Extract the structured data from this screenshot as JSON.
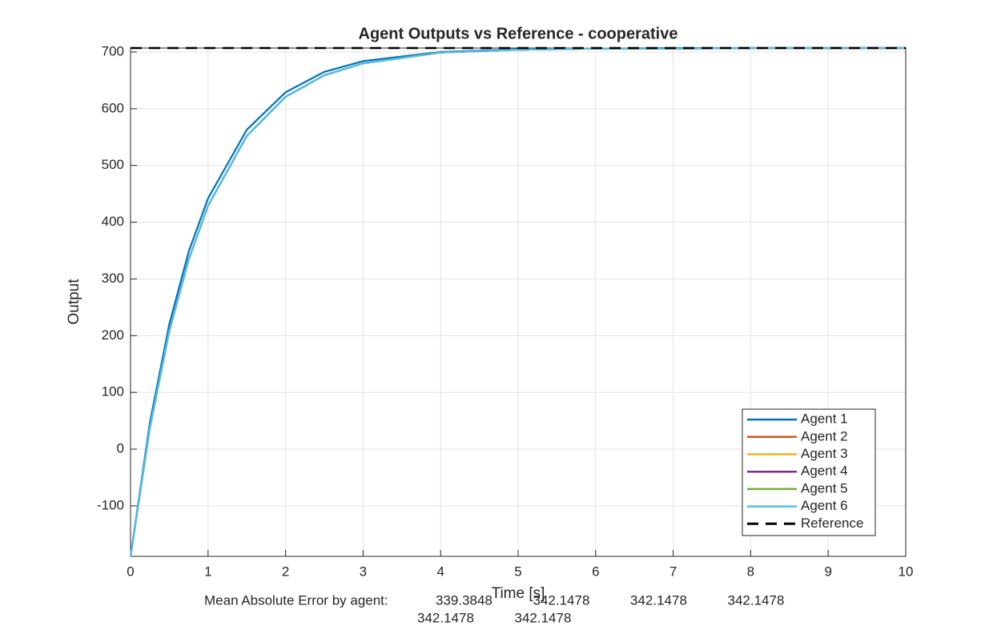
{
  "chart_data": {
    "type": "line",
    "title": "Agent Outputs vs Reference - cooperative",
    "x_label": "Time [s]",
    "y_label": "Output",
    "x": [
      0,
      0.25,
      0.5,
      0.75,
      1,
      1.5,
      2,
      2.5,
      3,
      4,
      5,
      6,
      7,
      8,
      10
    ],
    "series": [
      {
        "name": "Agent 1",
        "color": "#0072BD",
        "values": [
          -189,
          47,
          220,
          348,
          442,
          563,
          629,
          665,
          684,
          700,
          705,
          706,
          707,
          707,
          707
        ]
      },
      {
        "name": "Agent 2",
        "color": "#D95319",
        "values": [
          -189,
          38,
          208,
          334,
          429,
          552,
          621,
          659,
          680,
          699,
          704,
          706,
          706,
          707,
          707
        ]
      },
      {
        "name": "Agent 3",
        "color": "#EDB120",
        "values": [
          -189,
          38,
          208,
          334,
          429,
          552,
          621,
          659,
          680,
          699,
          704,
          706,
          706,
          707,
          707
        ]
      },
      {
        "name": "Agent 4",
        "color": "#7E2F8E",
        "values": [
          -189,
          38,
          208,
          334,
          429,
          552,
          621,
          659,
          680,
          699,
          704,
          706,
          706,
          707,
          707
        ]
      },
      {
        "name": "Agent 5",
        "color": "#77AC30",
        "values": [
          -189,
          38,
          208,
          334,
          429,
          552,
          621,
          659,
          680,
          699,
          704,
          706,
          706,
          707,
          707
        ]
      },
      {
        "name": "Agent 6",
        "color": "#4DBEEE",
        "values": [
          -189,
          38,
          208,
          334,
          429,
          552,
          621,
          659,
          680,
          699,
          704,
          706,
          706,
          707,
          707
        ]
      },
      {
        "name": "Reference",
        "color": "#000000",
        "dashed": true,
        "values": [
          707,
          707,
          707,
          707,
          707,
          707,
          707,
          707,
          707,
          707,
          707,
          707,
          707,
          707,
          707
        ]
      }
    ],
    "xlim": [
      0,
      10
    ],
    "xticks": [
      0,
      1,
      2,
      3,
      4,
      5,
      6,
      7,
      8,
      9,
      10
    ],
    "ylim": [
      -189,
      707
    ],
    "yticks": [
      -100,
      0,
      100,
      200,
      300,
      400,
      500,
      600,
      700
    ],
    "grid": true,
    "legend": "lower right",
    "mae_label": "Mean Absolute Error by agent:",
    "mae_values": [
      339.3848,
      342.1478,
      342.1478,
      342.1478,
      342.1478,
      342.1478
    ]
  }
}
